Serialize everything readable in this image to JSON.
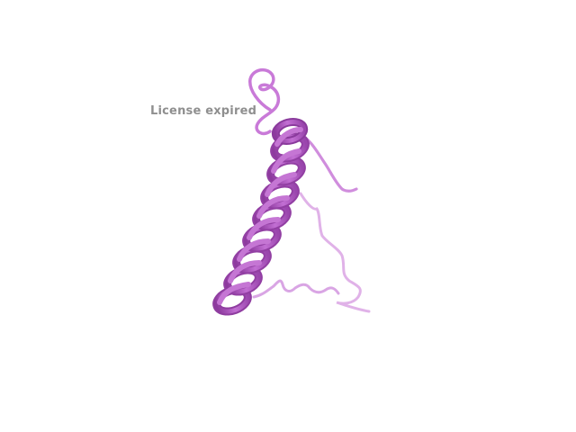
{
  "watermark": {
    "text": "License expired"
  },
  "structure": {
    "representation": "ribbon-cartoon",
    "colors": {
      "helix_dark": "#9a3fab",
      "helix_mid": "#b65dc8",
      "helix_light": "#d98fe6",
      "coil": "#c87ad6",
      "coil_light": "#e2b6ea"
    }
  }
}
